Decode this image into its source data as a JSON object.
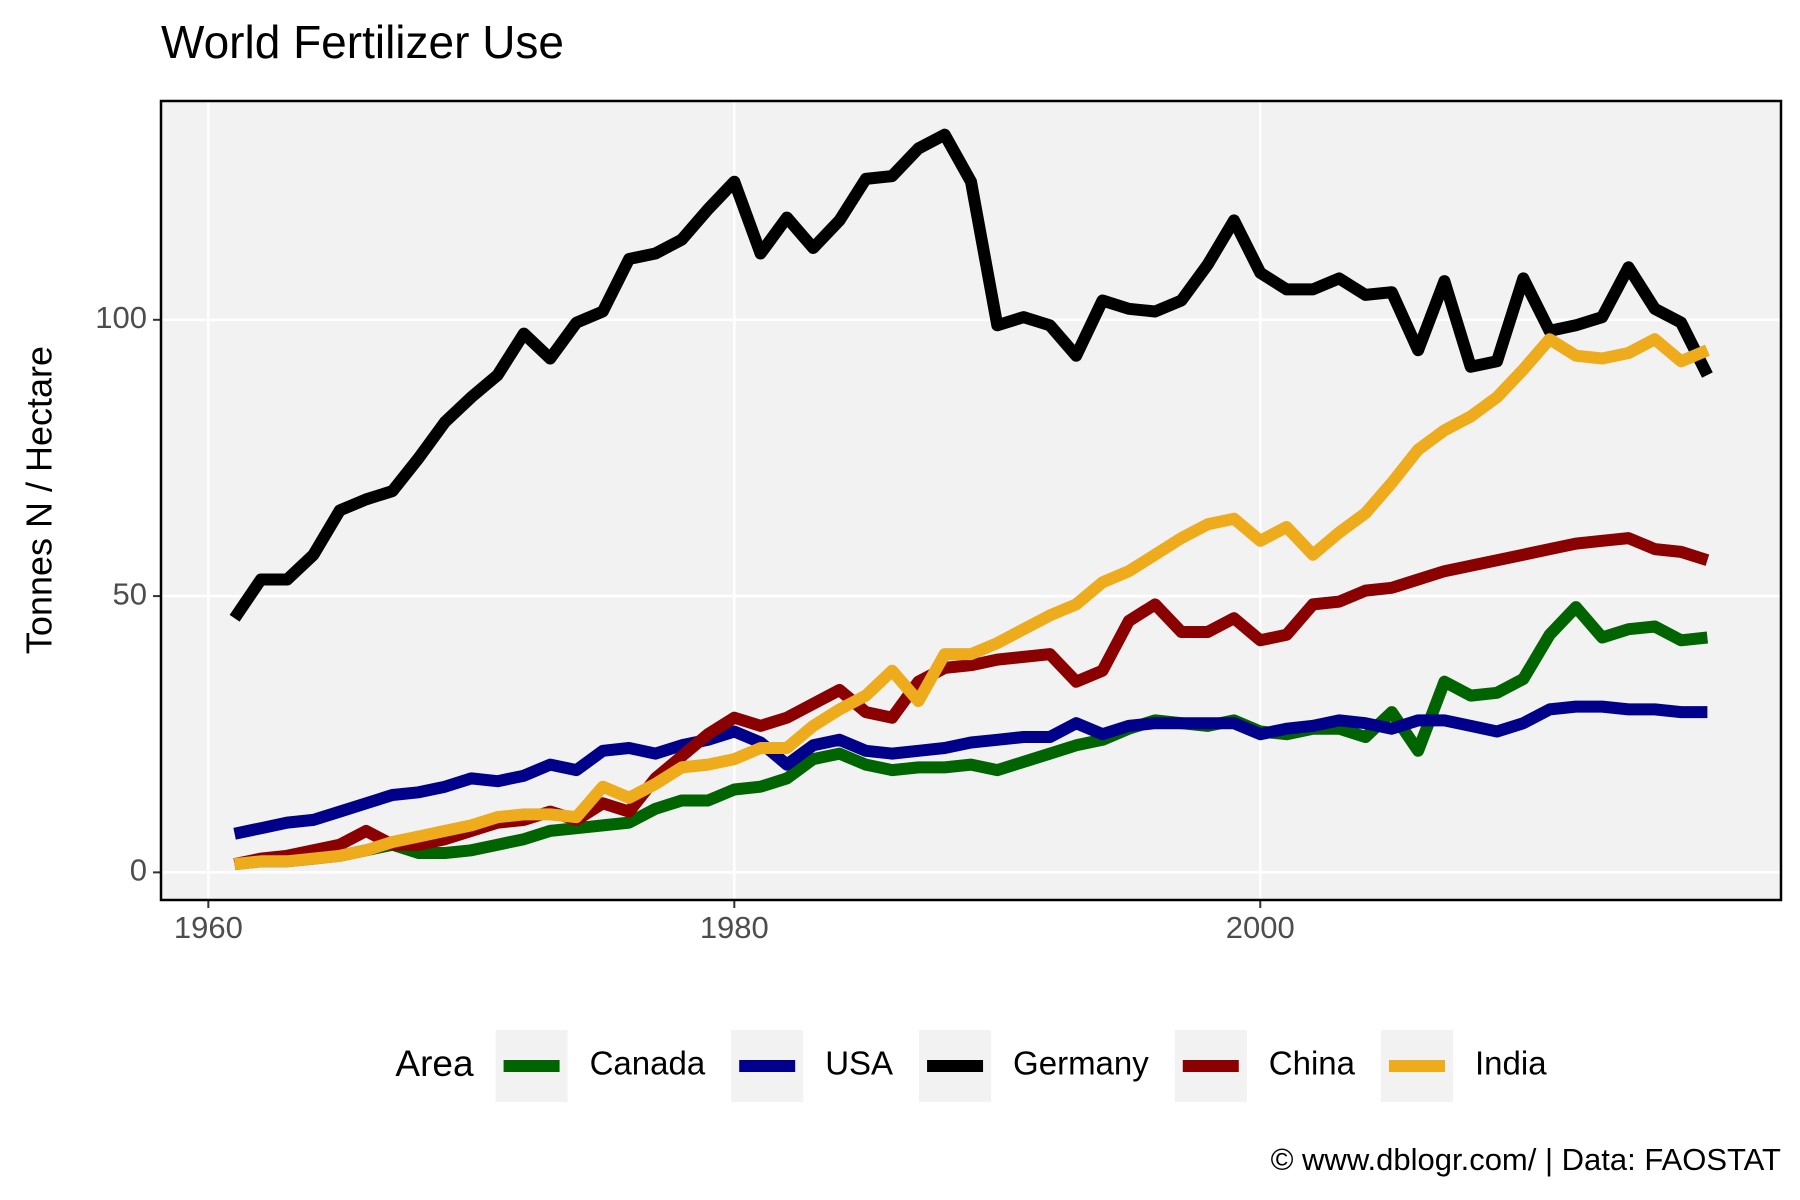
{
  "chart_data": {
    "type": "line",
    "title": "World Fertilizer Use",
    "y_label": "Tonnes N / Hectare",
    "legend_title": "Area",
    "caption": "© www.dblogr.com/ | Data: FAOSTAT",
    "x": [
      1961,
      1962,
      1963,
      1964,
      1965,
      1966,
      1967,
      1968,
      1969,
      1970,
      1971,
      1972,
      1973,
      1974,
      1975,
      1976,
      1977,
      1978,
      1979,
      1980,
      1981,
      1982,
      1983,
      1984,
      1985,
      1986,
      1987,
      1988,
      1989,
      1990,
      1991,
      1992,
      1993,
      1994,
      1995,
      1996,
      1997,
      1998,
      1999,
      2000,
      2001,
      2002,
      2003,
      2004,
      2005,
      2006,
      2007,
      2008,
      2009,
      2010,
      2011,
      2012,
      2013,
      2014,
      2015,
      2016,
      2017
    ],
    "series": [
      {
        "name": "Canada",
        "color": "#006400",
        "values": [
          1.5,
          2,
          2,
          2.5,
          3,
          4,
          5,
          3.5,
          3.5,
          4,
          5,
          6,
          7.5,
          8,
          8.5,
          9,
          11.5,
          13,
          13,
          15,
          15.5,
          17,
          20.5,
          21.5,
          19.5,
          18.5,
          19,
          19,
          19.5,
          18.5,
          20,
          21.5,
          23,
          24,
          26,
          27.5,
          27,
          26.5,
          27.5,
          25.5,
          25,
          26,
          26,
          24.5,
          29,
          22,
          34.5,
          32,
          32.5,
          35,
          43,
          48,
          42.5,
          44,
          44.5,
          42,
          42.5
        ]
      },
      {
        "name": "USA",
        "color": "#00008b",
        "values": [
          7,
          8,
          9,
          9.5,
          11,
          12.5,
          14,
          14.5,
          15.5,
          17,
          16.5,
          17.5,
          19.5,
          18.5,
          22,
          22.5,
          21.5,
          23,
          24,
          25.5,
          23.5,
          19.5,
          23,
          24,
          22,
          21.5,
          22,
          22.5,
          23.5,
          24,
          24.5,
          24.5,
          27,
          25,
          26.5,
          27,
          27,
          27,
          27,
          25,
          26,
          26.5,
          27.5,
          27,
          26,
          27.5,
          27.5,
          26.5,
          25.5,
          27,
          29.5,
          30,
          30,
          29.5,
          29.5,
          29,
          29
        ]
      },
      {
        "name": "Germany",
        "color": "#000000",
        "values": [
          46,
          53,
          53,
          57.5,
          65.5,
          67.5,
          69,
          75,
          81.5,
          86,
          90,
          97.5,
          93,
          99.5,
          101.5,
          111,
          112,
          114.5,
          120,
          125,
          112,
          118.5,
          113,
          118,
          125.5,
          126,
          131,
          133.5,
          125,
          99,
          100.5,
          99,
          93.5,
          103.5,
          102,
          101.5,
          103.5,
          110,
          118,
          108.5,
          105.5,
          105.5,
          107.5,
          104.5,
          105,
          94.5,
          107,
          91.5,
          92.5,
          107.5,
          98,
          99,
          100.5,
          109.5,
          102,
          99.5,
          90
        ]
      },
      {
        "name": "China",
        "color": "#8b0000",
        "values": [
          1.5,
          2.5,
          3,
          4,
          5,
          7.5,
          5,
          5,
          6,
          7.5,
          9,
          9.5,
          11,
          9.5,
          12.5,
          11,
          17,
          21,
          25,
          28,
          26.5,
          28,
          30.5,
          33,
          29,
          28,
          34.5,
          37,
          37.5,
          38.5,
          39,
          39.5,
          34.5,
          36.5,
          45.5,
          48.5,
          43.5,
          43.5,
          46,
          42,
          43,
          48.5,
          49,
          51,
          51.5,
          53,
          54.5,
          55.5,
          56.5,
          57.5,
          58.5,
          59.5,
          60,
          60.5,
          58.5,
          58,
          56.5
        ]
      },
      {
        "name": "India",
        "color": "#eeab1b",
        "values": [
          1.5,
          2,
          2,
          2.5,
          3,
          4,
          5.5,
          6.5,
          7.5,
          8.5,
          10,
          10.5,
          10.5,
          10,
          15.5,
          13.5,
          16,
          19,
          19.5,
          20.5,
          22.5,
          22.5,
          26.5,
          29.5,
          32,
          36.5,
          31,
          39.5,
          39.5,
          41.5,
          44,
          46.5,
          48.5,
          52.5,
          54.5,
          57.5,
          60.5,
          63,
          64,
          60,
          62.5,
          57.5,
          61.5,
          65,
          70.5,
          76.5,
          80,
          82.5,
          86,
          91,
          96.5,
          93.5,
          93,
          94,
          96.5,
          92.5,
          94.5
        ]
      }
    ],
    "xlim": [
      1958.2,
      2019.8
    ],
    "xticks": [
      1960,
      1980,
      2000
    ],
    "ylim": [
      -5,
      139.6
    ],
    "yticks": [
      0,
      50,
      100
    ],
    "grid": true,
    "legend_position": "bottom"
  }
}
